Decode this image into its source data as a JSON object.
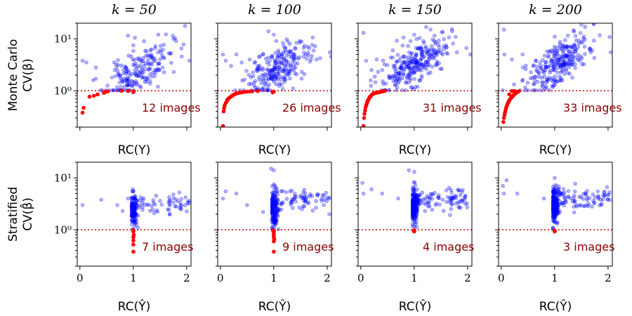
{
  "chart_data": {
    "type": "scatter",
    "layout": {
      "rows": 2,
      "cols": 4
    },
    "column_titles": [
      "k = 50",
      "k = 100",
      "k = 150",
      "k = 200"
    ],
    "row_ylabels": [
      {
        "line1": "Monte Carlo",
        "line2": "CV(β)"
      },
      {
        "line1": "Stratified",
        "line2": "CV(β̂)"
      }
    ],
    "row_xlabels": [
      "RC(Y)",
      "RC(Ŷ)"
    ],
    "xlim": [
      -0.05,
      2.08
    ],
    "ylim_log": [
      0.2,
      20
    ],
    "xticks": [
      0,
      1,
      2
    ],
    "yticks": [
      {
        "value": 1,
        "label": "10⁰"
      },
      {
        "value": 10,
        "label": "10¹"
      }
    ],
    "threshold_y": 1,
    "colors": {
      "above": "#0000ff",
      "below": "#ff0000",
      "threshold": "#cc0000",
      "annotation": "#8b0000"
    },
    "panels": [
      {
        "row": 0,
        "col": 0,
        "annotation": "12 images",
        "red_points": [
          [
            0.05,
            0.38
          ],
          [
            0.07,
            0.47
          ],
          [
            0.18,
            0.77
          ],
          [
            0.26,
            0.8
          ],
          [
            0.33,
            0.85
          ],
          [
            0.45,
            0.91
          ],
          [
            0.48,
            0.96
          ],
          [
            0.52,
            0.97
          ],
          [
            0.78,
            1.0
          ],
          [
            1.0,
            0.94
          ],
          [
            1.01,
            0.98
          ],
          [
            0.9,
            0.99
          ]
        ],
        "blue_cluster": {
          "seed": 11,
          "n": 190,
          "x_mean": 1.1,
          "x_sd": 0.3,
          "y_log_mean": 0.37,
          "y_log_sd": 0.2,
          "trend": 0.6
        },
        "blue_extra": [
          [
            0.05,
            3.8
          ],
          [
            0.12,
            3.5
          ],
          [
            0.3,
            2.8
          ],
          [
            0.25,
            1.6
          ],
          [
            0.6,
            1.8
          ],
          [
            0.8,
            1.5
          ],
          [
            0.9,
            11.5
          ],
          [
            1.03,
            10.5
          ],
          [
            1.0,
            7.5
          ],
          [
            1.2,
            9.0
          ],
          [
            1.5,
            6.0
          ],
          [
            1.9,
            6.5
          ],
          [
            2.05,
            3.8
          ]
        ]
      },
      {
        "row": 0,
        "col": 1,
        "annotation": "26 images",
        "red_points": [
          [
            0.05,
            0.21
          ],
          [
            0.06,
            0.4
          ],
          [
            0.07,
            0.46
          ],
          [
            0.08,
            0.52
          ],
          [
            0.1,
            0.58
          ],
          [
            0.12,
            0.62
          ],
          [
            0.13,
            0.67
          ],
          [
            0.15,
            0.7
          ],
          [
            0.16,
            0.72
          ],
          [
            0.18,
            0.75
          ],
          [
            0.2,
            0.77
          ],
          [
            0.22,
            0.8
          ],
          [
            0.24,
            0.83
          ],
          [
            0.26,
            0.85
          ],
          [
            0.28,
            0.87
          ],
          [
            0.3,
            0.89
          ],
          [
            0.33,
            0.9
          ],
          [
            0.36,
            0.92
          ],
          [
            0.4,
            0.93
          ],
          [
            0.45,
            0.95
          ],
          [
            0.5,
            0.96
          ],
          [
            0.55,
            0.97
          ],
          [
            0.6,
            0.98
          ],
          [
            0.7,
            0.99
          ],
          [
            0.98,
            0.93
          ],
          [
            1.0,
            0.97
          ]
        ],
        "blue_cluster": {
          "seed": 23,
          "n": 240,
          "x_mean": 1.05,
          "x_sd": 0.3,
          "y_log_mean": 0.4,
          "y_log_sd": 0.22,
          "trend": 0.6
        },
        "blue_extra": [
          [
            0.05,
            5.0
          ],
          [
            0.1,
            3.8
          ],
          [
            0.2,
            3.0
          ],
          [
            0.3,
            5.0
          ],
          [
            0.4,
            3.5
          ],
          [
            0.55,
            4.0
          ],
          [
            0.7,
            3.0
          ],
          [
            0.9,
            14.0
          ],
          [
            1.0,
            12.0
          ],
          [
            1.3,
            8.0
          ],
          [
            1.6,
            5.0
          ],
          [
            1.8,
            4.0
          ],
          [
            2.05,
            5.5
          ]
        ]
      },
      {
        "row": 0,
        "col": 2,
        "annotation": "31 images",
        "red_points": [
          [
            0.05,
            0.21
          ],
          [
            0.06,
            0.3
          ],
          [
            0.07,
            0.36
          ],
          [
            0.08,
            0.42
          ],
          [
            0.09,
            0.48
          ],
          [
            0.1,
            0.52
          ],
          [
            0.11,
            0.56
          ],
          [
            0.12,
            0.6
          ],
          [
            0.13,
            0.64
          ],
          [
            0.14,
            0.67
          ],
          [
            0.15,
            0.7
          ],
          [
            0.16,
            0.73
          ],
          [
            0.17,
            0.76
          ],
          [
            0.18,
            0.78
          ],
          [
            0.19,
            0.8
          ],
          [
            0.2,
            0.82
          ],
          [
            0.21,
            0.84
          ],
          [
            0.22,
            0.86
          ],
          [
            0.23,
            0.87
          ],
          [
            0.24,
            0.88
          ],
          [
            0.25,
            0.9
          ],
          [
            0.26,
            0.9
          ],
          [
            0.28,
            0.91
          ],
          [
            0.3,
            0.92
          ],
          [
            0.32,
            0.93
          ],
          [
            0.34,
            0.94
          ],
          [
            0.36,
            0.95
          ],
          [
            0.38,
            0.96
          ],
          [
            0.4,
            0.97
          ],
          [
            0.42,
            0.98
          ],
          [
            0.45,
            0.99
          ]
        ],
        "blue_cluster": {
          "seed": 37,
          "n": 270,
          "x_mean": 1.05,
          "x_sd": 0.32,
          "y_log_mean": 0.55,
          "y_log_sd": 0.2,
          "trend": 0.55
        },
        "blue_extra": [
          [
            0.05,
            13.0
          ],
          [
            0.1,
            3.8
          ],
          [
            0.2,
            2.5
          ],
          [
            0.3,
            4.0
          ],
          [
            0.4,
            2.5
          ],
          [
            0.6,
            6.0
          ],
          [
            1.0,
            12.0
          ],
          [
            1.4,
            8.0
          ],
          [
            1.8,
            5.5
          ],
          [
            2.05,
            5.0
          ]
        ]
      },
      {
        "row": 0,
        "col": 3,
        "annotation": "33 images",
        "red_points": [
          [
            0.04,
            0.25
          ],
          [
            0.05,
            0.3
          ],
          [
            0.06,
            0.34
          ],
          [
            0.07,
            0.38
          ],
          [
            0.08,
            0.42
          ],
          [
            0.09,
            0.46
          ],
          [
            0.1,
            0.5
          ],
          [
            0.11,
            0.53
          ],
          [
            0.12,
            0.56
          ],
          [
            0.13,
            0.59
          ],
          [
            0.14,
            0.62
          ],
          [
            0.15,
            0.65
          ],
          [
            0.16,
            0.68
          ],
          [
            0.17,
            0.7
          ],
          [
            0.18,
            0.72
          ],
          [
            0.19,
            0.74
          ],
          [
            0.2,
            0.76
          ],
          [
            0.21,
            0.78
          ],
          [
            0.22,
            0.8
          ],
          [
            0.23,
            0.82
          ],
          [
            0.24,
            0.84
          ],
          [
            0.25,
            0.86
          ],
          [
            0.26,
            0.88
          ],
          [
            0.27,
            0.9
          ],
          [
            0.28,
            0.92
          ],
          [
            0.29,
            0.93
          ],
          [
            0.3,
            0.95
          ],
          [
            0.31,
            0.96
          ],
          [
            0.32,
            0.97
          ],
          [
            0.33,
            0.98
          ],
          [
            0.2,
            0.99
          ],
          [
            0.15,
            0.85
          ],
          [
            0.25,
            0.99
          ]
        ],
        "blue_cluster": {
          "seed": 53,
          "n": 260,
          "x_mean": 1.05,
          "x_sd": 0.3,
          "y_log_mean": 0.52,
          "y_log_sd": 0.2,
          "trend": 0.6
        },
        "blue_extra": [
          [
            0.05,
            15.0
          ],
          [
            0.06,
            5.0
          ],
          [
            0.2,
            4.0
          ],
          [
            0.4,
            5.0
          ],
          [
            0.6,
            3.0
          ],
          [
            0.8,
            2.5
          ],
          [
            1.0,
            11.0
          ],
          [
            1.3,
            7.0
          ],
          [
            1.7,
            6.0
          ],
          [
            2.05,
            5.5
          ]
        ]
      },
      {
        "row": 1,
        "col": 0,
        "annotation": "7 images",
        "red_points": [
          [
            1.0,
            0.93
          ],
          [
            1.0,
            0.72
          ],
          [
            1.0,
            0.62
          ],
          [
            1.0,
            0.52
          ],
          [
            1.0,
            0.38
          ],
          [
            1.0,
            0.98
          ],
          [
            1.01,
            0.8
          ]
        ],
        "blue_cluster": {
          "seed": 71,
          "n": 120,
          "x_mean": 1.0,
          "x_sd": 0.04,
          "y_log_mean": 0.38,
          "y_log_sd": 0.16,
          "trend": 0
        },
        "blue_spread": {
          "seed": 72,
          "n": 60,
          "x_min": 1.05,
          "x_max": 2.05,
          "y_log_mean": 0.5,
          "y_log_sd": 0.1
        },
        "blue_extra": [
          [
            0.05,
            3.0
          ],
          [
            0.4,
            3.8
          ],
          [
            0.8,
            2.3
          ],
          [
            0.7,
            3.0
          ],
          [
            0.9,
            4.0
          ]
        ]
      },
      {
        "row": 1,
        "col": 1,
        "annotation": "9 images",
        "red_points": [
          [
            1.0,
            0.93
          ],
          [
            1.0,
            0.72
          ],
          [
            1.0,
            0.6
          ],
          [
            1.0,
            0.38
          ],
          [
            1.0,
            0.98
          ],
          [
            1.0,
            0.85
          ],
          [
            1.01,
            0.66
          ],
          [
            0.99,
            0.95
          ],
          [
            1.0,
            0.78
          ]
        ],
        "blue_cluster": {
          "seed": 83,
          "n": 160,
          "x_mean": 1.0,
          "x_sd": 0.04,
          "y_log_mean": 0.42,
          "y_log_sd": 0.2,
          "trend": 0
        },
        "blue_spread": {
          "seed": 84,
          "n": 70,
          "x_min": 1.05,
          "x_max": 2.05,
          "y_log_mean": 0.55,
          "y_log_sd": 0.12
        },
        "blue_extra": [
          [
            0.05,
            4.0
          ],
          [
            0.1,
            5.5
          ],
          [
            0.3,
            5.0
          ],
          [
            0.5,
            3.0
          ],
          [
            0.8,
            2.2
          ],
          [
            0.95,
            15.0
          ],
          [
            1.0,
            14.0
          ]
        ]
      },
      {
        "row": 1,
        "col": 2,
        "annotation": "4 images",
        "red_points": [
          [
            1.0,
            0.93
          ],
          [
            1.0,
            0.97
          ],
          [
            0.99,
            0.95
          ],
          [
            1.0,
            0.98
          ]
        ],
        "blue_cluster": {
          "seed": 97,
          "n": 200,
          "x_mean": 1.0,
          "x_sd": 0.04,
          "y_log_mean": 0.45,
          "y_log_sd": 0.17,
          "trend": 0
        },
        "blue_spread": {
          "seed": 98,
          "n": 80,
          "x_min": 1.05,
          "x_max": 2.05,
          "y_log_mean": 0.58,
          "y_log_sd": 0.1
        },
        "blue_extra": [
          [
            0.03,
            8.0
          ],
          [
            0.05,
            5.0
          ],
          [
            0.2,
            6.0
          ],
          [
            0.4,
            5.0
          ],
          [
            0.7,
            4.0
          ],
          [
            0.9,
            14.0
          ],
          [
            1.0,
            13.0
          ]
        ]
      },
      {
        "row": 1,
        "col": 3,
        "annotation": "3 images",
        "red_points": [
          [
            1.0,
            0.93
          ],
          [
            1.0,
            0.97
          ],
          [
            1.0,
            0.95
          ]
        ],
        "blue_cluster": {
          "seed": 113,
          "n": 220,
          "x_mean": 1.0,
          "x_sd": 0.04,
          "y_log_mean": 0.48,
          "y_log_sd": 0.17,
          "trend": 0
        },
        "blue_spread": {
          "seed": 114,
          "n": 80,
          "x_min": 1.05,
          "x_max": 2.05,
          "y_log_mean": 0.6,
          "y_log_sd": 0.1
        },
        "blue_extra": [
          [
            0.03,
            7.0
          ],
          [
            0.05,
            5.0
          ],
          [
            0.1,
            9.0
          ],
          [
            0.3,
            5.0
          ],
          [
            0.8,
            4.0
          ],
          [
            1.0,
            10.0
          ]
        ]
      }
    ]
  }
}
